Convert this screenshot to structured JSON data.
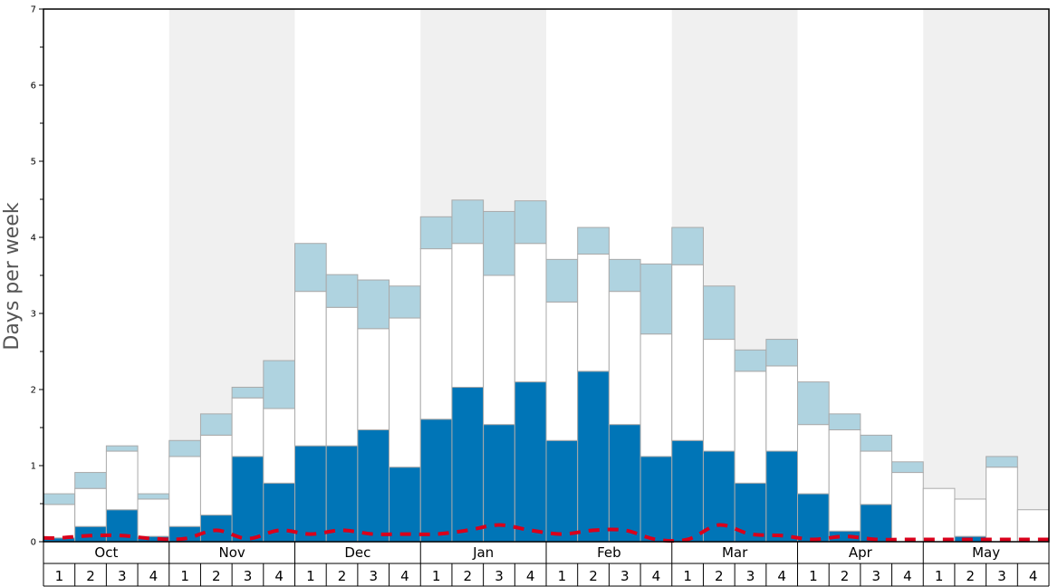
{
  "chart_data": {
    "type": "bar",
    "stacking": "stacked",
    "ylabel": "Days per week",
    "ylim": [
      0,
      7
    ],
    "y_major_ticks": [
      0,
      1,
      2,
      3,
      4,
      5,
      6,
      7
    ],
    "y_minor_step": 0.5,
    "months": [
      "Oct",
      "Nov",
      "Dec",
      "Jan",
      "Feb",
      "Mar",
      "Apr",
      "May"
    ],
    "weeks_per_month": [
      "1",
      "2",
      "3",
      "4"
    ],
    "colors": {
      "dark": "#0075b7",
      "mid": "#ffffff",
      "light": "#afd3e0",
      "line": "#d9001b",
      "alt_band": "#f0f0f0",
      "bar_edge": "#aaaaaa"
    },
    "series": [
      {
        "name": "dark",
        "values": [
          0.05,
          0.2,
          0.42,
          0.07,
          0.2,
          0.35,
          1.12,
          0.77,
          1.26,
          1.26,
          1.47,
          0.98,
          1.61,
          2.03,
          1.54,
          2.1,
          1.33,
          2.24,
          1.54,
          1.12,
          1.33,
          1.19,
          0.77,
          1.19,
          0.63,
          0.14,
          0.49,
          0.0,
          0.0,
          0.07,
          0.0,
          0.0
        ]
      },
      {
        "name": "mid",
        "values": [
          0.44,
          0.5,
          0.77,
          0.49,
          0.92,
          1.05,
          0.77,
          0.98,
          2.03,
          1.82,
          1.33,
          1.96,
          2.24,
          1.89,
          1.96,
          1.82,
          1.82,
          1.54,
          1.75,
          1.61,
          2.31,
          1.47,
          1.47,
          1.12,
          0.91,
          1.33,
          0.7,
          0.91,
          0.7,
          0.49,
          0.98,
          0.42
        ]
      },
      {
        "name": "light",
        "values": [
          0.14,
          0.21,
          0.07,
          0.07,
          0.21,
          0.28,
          0.14,
          0.63,
          0.63,
          0.43,
          0.64,
          0.42,
          0.42,
          0.57,
          0.84,
          0.56,
          0.56,
          0.35,
          0.42,
          0.92,
          0.49,
          0.7,
          0.28,
          0.35,
          0.56,
          0.21,
          0.21,
          0.14,
          0.0,
          0.0,
          0.14,
          0.0
        ]
      }
    ],
    "line": {
      "name": "dashed",
      "style": "dashed",
      "values": [
        0.05,
        0.08,
        0.08,
        0.04,
        0.04,
        0.15,
        0.04,
        0.15,
        0.1,
        0.15,
        0.1,
        0.1,
        0.1,
        0.15,
        0.22,
        0.15,
        0.1,
        0.15,
        0.15,
        0.03,
        0.03,
        0.22,
        0.1,
        0.08,
        0.03,
        0.07,
        0.03,
        0.03,
        0.03,
        0.03,
        0.03,
        0.03
      ]
    }
  }
}
